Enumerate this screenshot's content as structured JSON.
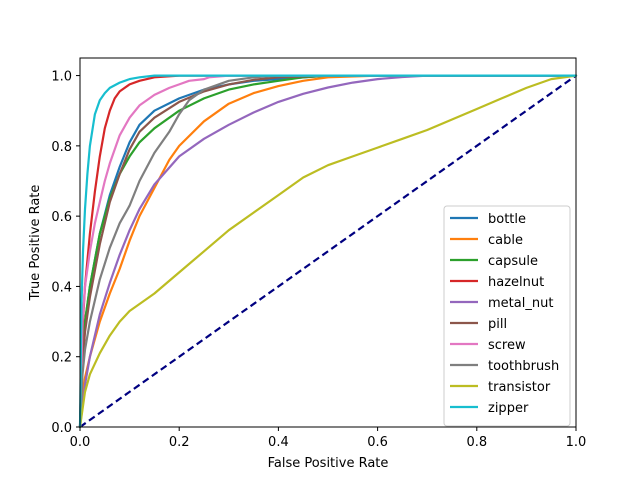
{
  "chart_data": {
    "type": "line",
    "title": "",
    "xlabel": "False Positive Rate",
    "ylabel": "True Positive Rate",
    "xlim": [
      0.0,
      1.0
    ],
    "ylim": [
      0.0,
      1.05
    ],
    "xticks": [
      "0.0",
      "0.2",
      "0.4",
      "0.6",
      "0.8",
      "1.0"
    ],
    "yticks": [
      "0.0",
      "0.2",
      "0.4",
      "0.6",
      "0.8",
      "1.0"
    ],
    "grid": false,
    "legend_position": "lower-right",
    "diagonal": {
      "x": [
        0,
        1
      ],
      "y": [
        0,
        1
      ],
      "color": "#000080",
      "style": "dashed"
    },
    "series": [
      {
        "name": "bottle",
        "color": "#1f77b4",
        "x": [
          0,
          0.005,
          0.01,
          0.02,
          0.04,
          0.06,
          0.08,
          0.1,
          0.12,
          0.15,
          0.2,
          0.25,
          0.3,
          0.35,
          0.4,
          0.5,
          1.0
        ],
        "y": [
          0,
          0.2,
          0.3,
          0.4,
          0.55,
          0.66,
          0.74,
          0.81,
          0.86,
          0.9,
          0.935,
          0.96,
          0.975,
          0.985,
          0.99,
          1.0,
          1.0
        ]
      },
      {
        "name": "cable",
        "color": "#ff7f0e",
        "x": [
          0,
          0.005,
          0.01,
          0.02,
          0.04,
          0.06,
          0.08,
          0.1,
          0.12,
          0.15,
          0.18,
          0.2,
          0.25,
          0.3,
          0.35,
          0.4,
          0.45,
          0.5,
          0.6,
          1.0
        ],
        "y": [
          0,
          0.1,
          0.14,
          0.2,
          0.3,
          0.38,
          0.45,
          0.53,
          0.6,
          0.68,
          0.76,
          0.8,
          0.87,
          0.92,
          0.95,
          0.97,
          0.985,
          0.995,
          1.0,
          1.0
        ]
      },
      {
        "name": "capsule",
        "color": "#2ca02c",
        "x": [
          0,
          0.005,
          0.01,
          0.02,
          0.04,
          0.06,
          0.08,
          0.1,
          0.12,
          0.15,
          0.2,
          0.25,
          0.3,
          0.35,
          0.4,
          0.45,
          0.5,
          1.0
        ],
        "y": [
          0,
          0.2,
          0.3,
          0.4,
          0.55,
          0.65,
          0.72,
          0.77,
          0.81,
          0.85,
          0.9,
          0.935,
          0.96,
          0.975,
          0.985,
          0.995,
          1.0,
          1.0
        ]
      },
      {
        "name": "hazelnut",
        "color": "#d62728",
        "x": [
          0,
          0.005,
          0.01,
          0.02,
          0.03,
          0.04,
          0.05,
          0.06,
          0.07,
          0.08,
          0.1,
          0.12,
          0.15,
          0.2,
          1.0
        ],
        "y": [
          0,
          0.28,
          0.4,
          0.55,
          0.67,
          0.77,
          0.85,
          0.9,
          0.935,
          0.955,
          0.975,
          0.985,
          0.995,
          1.0,
          1.0
        ]
      },
      {
        "name": "metal_nut",
        "color": "#9467bd",
        "x": [
          0,
          0.01,
          0.02,
          0.04,
          0.06,
          0.08,
          0.1,
          0.12,
          0.15,
          0.2,
          0.25,
          0.3,
          0.35,
          0.4,
          0.45,
          0.5,
          0.55,
          0.6,
          0.65,
          0.7,
          1.0
        ],
        "y": [
          0,
          0.12,
          0.2,
          0.32,
          0.41,
          0.49,
          0.56,
          0.62,
          0.69,
          0.77,
          0.82,
          0.86,
          0.895,
          0.925,
          0.948,
          0.966,
          0.98,
          0.99,
          0.996,
          1.0,
          1.0
        ]
      },
      {
        "name": "pill",
        "color": "#8c564b",
        "x": [
          0,
          0.005,
          0.01,
          0.02,
          0.04,
          0.06,
          0.08,
          0.1,
          0.12,
          0.15,
          0.2,
          0.25,
          0.3,
          0.35,
          0.4,
          0.5,
          1.0
        ],
        "y": [
          0,
          0.18,
          0.27,
          0.37,
          0.52,
          0.64,
          0.72,
          0.79,
          0.84,
          0.88,
          0.925,
          0.955,
          0.975,
          0.988,
          0.995,
          1.0,
          1.0
        ]
      },
      {
        "name": "screw",
        "color": "#e377c2",
        "x": [
          0,
          0.005,
          0.01,
          0.02,
          0.03,
          0.04,
          0.05,
          0.06,
          0.08,
          0.1,
          0.12,
          0.15,
          0.18,
          0.2,
          0.22,
          0.25,
          0.26,
          0.3,
          1.0
        ],
        "y": [
          0,
          0.3,
          0.4,
          0.5,
          0.58,
          0.64,
          0.7,
          0.75,
          0.83,
          0.88,
          0.915,
          0.945,
          0.965,
          0.975,
          0.985,
          0.99,
          0.995,
          1.0,
          1.0
        ]
      },
      {
        "name": "toothbrush",
        "color": "#7f7f7f",
        "x": [
          0,
          0.005,
          0.01,
          0.02,
          0.04,
          0.06,
          0.08,
          0.1,
          0.12,
          0.15,
          0.18,
          0.2,
          0.22,
          0.25,
          0.3,
          0.35,
          0.4,
          1.0
        ],
        "y": [
          0,
          0.15,
          0.22,
          0.3,
          0.42,
          0.51,
          0.58,
          0.63,
          0.7,
          0.78,
          0.84,
          0.89,
          0.93,
          0.96,
          0.985,
          0.995,
          1.0,
          1.0
        ]
      },
      {
        "name": "transistor",
        "color": "#bcbd22",
        "x": [
          0,
          0.01,
          0.02,
          0.04,
          0.06,
          0.08,
          0.1,
          0.15,
          0.2,
          0.25,
          0.3,
          0.35,
          0.4,
          0.45,
          0.5,
          0.55,
          0.6,
          0.65,
          0.7,
          0.75,
          0.8,
          0.85,
          0.9,
          0.95,
          1.0
        ],
        "y": [
          0,
          0.1,
          0.15,
          0.21,
          0.26,
          0.3,
          0.33,
          0.38,
          0.44,
          0.5,
          0.56,
          0.61,
          0.66,
          0.71,
          0.745,
          0.77,
          0.795,
          0.82,
          0.845,
          0.875,
          0.905,
          0.935,
          0.965,
          0.99,
          1.0
        ]
      },
      {
        "name": "zipper",
        "color": "#17becf",
        "x": [
          0,
          0.003,
          0.006,
          0.01,
          0.015,
          0.02,
          0.03,
          0.04,
          0.05,
          0.06,
          0.08,
          0.1,
          0.12,
          0.15,
          0.2,
          1.0
        ],
        "y": [
          0,
          0.35,
          0.5,
          0.62,
          0.72,
          0.8,
          0.89,
          0.93,
          0.95,
          0.965,
          0.98,
          0.99,
          0.995,
          1.0,
          1.0,
          1.0
        ]
      }
    ]
  }
}
